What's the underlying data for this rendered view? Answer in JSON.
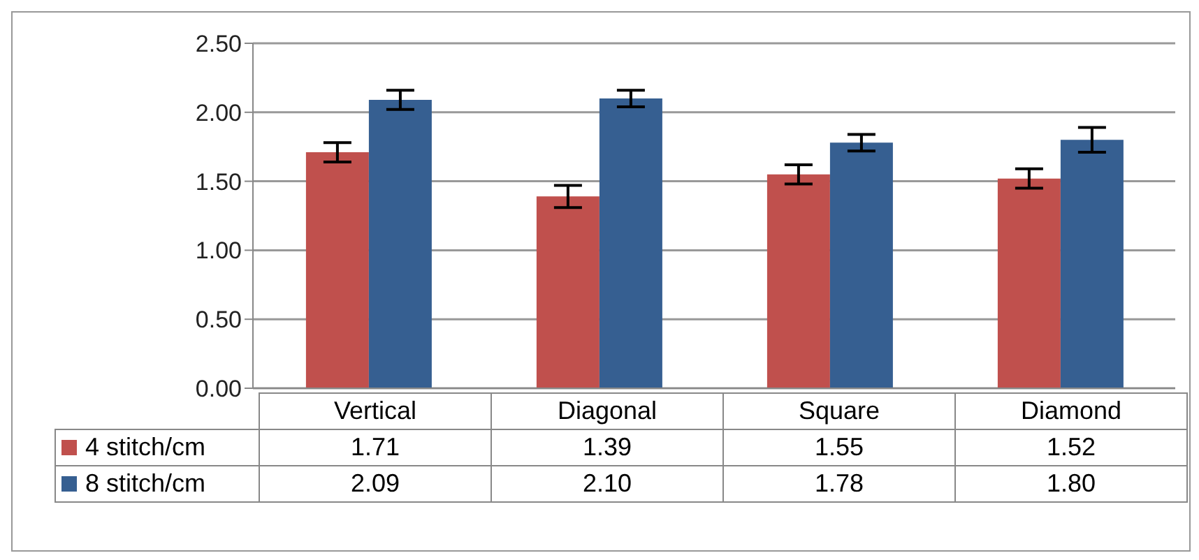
{
  "chart_data": {
    "type": "bar",
    "categories": [
      "Vertical",
      "Diagonal",
      "Square",
      "Diamond"
    ],
    "series": [
      {
        "name": "4 stitch/cm",
        "color": "#c0504d",
        "values": [
          1.71,
          1.39,
          1.55,
          1.52
        ],
        "value_labels": [
          "1.71",
          "1.39",
          "1.55",
          "1.52"
        ],
        "errors": [
          0.07,
          0.08,
          0.07,
          0.07
        ]
      },
      {
        "name": "8 stitch/cm",
        "color": "#365f91",
        "values": [
          2.09,
          2.1,
          1.78,
          1.8
        ],
        "value_labels": [
          "2.09",
          "2.10",
          "1.78",
          "1.80"
        ],
        "errors": [
          0.07,
          0.06,
          0.06,
          0.09
        ]
      }
    ],
    "ylim": [
      0,
      2.5
    ],
    "yticks": [
      {
        "value": 0,
        "label": "0.00"
      },
      {
        "value": 0.5,
        "label": "0.50"
      },
      {
        "value": 1,
        "label": "1.00"
      },
      {
        "value": 1.5,
        "label": "1.50"
      },
      {
        "value": 2,
        "label": "2.00"
      },
      {
        "value": 2.5,
        "label": "2.50"
      }
    ],
    "grid": "y",
    "legend": "bottom"
  }
}
